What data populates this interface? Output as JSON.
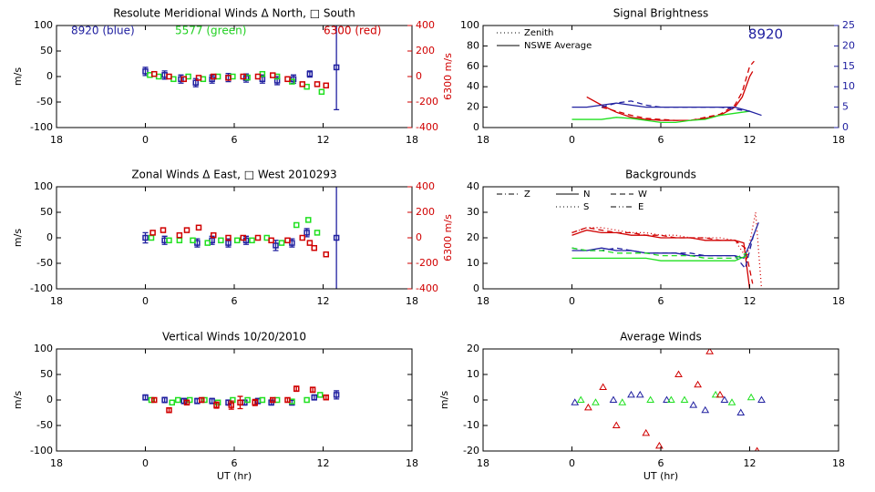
{
  "chart_data": [
    {
      "type": "scatter",
      "title": "Resolute Meridional Winds Δ North, □ South",
      "ylabel": "m/s",
      "y2label": "6300 m/s",
      "y2color": "#d00000",
      "marker": "square",
      "annotations": [
        {
          "text": "8920 (blue)",
          "color": "#2020a0"
        },
        {
          "text": "5577 (green)",
          "color": "#20d020"
        },
        {
          "text": "6300 (red)",
          "color": "#d00000"
        }
      ],
      "xlim": [
        -6,
        18
      ],
      "xticks": [
        {
          "value": -6,
          "label": "18"
        },
        0,
        6,
        12,
        18
      ],
      "ylim": [
        -100,
        100
      ],
      "yticks": [
        -100,
        -50,
        0,
        50,
        100
      ],
      "y2lim": [
        -400,
        400
      ],
      "y2ticks": [
        -400,
        -200,
        0,
        200,
        400
      ],
      "series": [
        {
          "color": "#2020a0",
          "x": [
            0,
            1.3,
            2.4,
            3.4,
            4.5,
            5.6,
            6.8,
            7.9,
            8.9,
            10.0,
            11.1,
            12.9
          ],
          "values": [
            10,
            3,
            -5,
            -12,
            -5,
            -2,
            -3,
            -5,
            -8,
            -5,
            5,
            18
          ],
          "errors": [
            8,
            8,
            8,
            8,
            8,
            8,
            8,
            8,
            8,
            8,
            6,
            83
          ]
        },
        {
          "color": "#20e020",
          "x": [
            0.3,
            0.9,
            1.9,
            2.9,
            3.9,
            4.9,
            5.9,
            6.9,
            7.9,
            8.9,
            9.9,
            10.9,
            11.9
          ],
          "values": [
            3,
            0,
            -5,
            0,
            -5,
            0,
            0,
            -2,
            5,
            0,
            -10,
            -20,
            -30
          ]
        },
        {
          "color": "#d00000",
          "axis": "y2",
          "x": [
            0.6,
            1.6,
            2.6,
            3.6,
            4.6,
            5.6,
            6.6,
            7.6,
            8.6,
            9.6,
            10.6,
            11.6,
            12.2
          ],
          "values": [
            20,
            0,
            -20,
            -10,
            0,
            -10,
            0,
            0,
            10,
            -20,
            -60,
            -60,
            -70
          ]
        }
      ]
    },
    {
      "type": "line",
      "title": "Signal Brightness",
      "y2color": "#2020a0",
      "annotations": [
        {
          "text": "8920",
          "color": "#2020a0"
        }
      ],
      "legend": [
        {
          "label": "Zenith",
          "style": "dotted"
        },
        {
          "label": "NSWE Average",
          "style": "solid"
        }
      ],
      "xlim": [
        -6,
        18
      ],
      "xticks": [
        {
          "value": -6,
          "label": "18"
        },
        0,
        6,
        12,
        18
      ],
      "ylim": [
        0,
        100
      ],
      "yticks": [
        0,
        20,
        40,
        60,
        80,
        100
      ],
      "y2lim": [
        0,
        25
      ],
      "y2ticks": [
        0,
        5,
        10,
        15,
        20,
        25
      ],
      "series": [
        {
          "color": "#d00000",
          "style": "solid",
          "x": [
            1,
            2,
            3,
            4,
            5,
            6,
            7,
            8,
            9,
            10,
            11,
            11.5,
            12,
            12.2
          ],
          "values": [
            30,
            22,
            15,
            10,
            8,
            7,
            7,
            7,
            9,
            12,
            20,
            30,
            50,
            55
          ]
        },
        {
          "color": "#d00000",
          "style": "dashed",
          "x": [
            2,
            3,
            4,
            5,
            6,
            7,
            8,
            9,
            10,
            11,
            11.5,
            12,
            12.3
          ],
          "values": [
            20,
            16,
            12,
            9,
            8,
            7,
            7,
            10,
            13,
            22,
            35,
            60,
            65
          ]
        },
        {
          "color": "#20e020",
          "style": "solid",
          "x": [
            0,
            1,
            2,
            3,
            4,
            5,
            6,
            7,
            8,
            9,
            10,
            11,
            12
          ],
          "values": [
            8,
            8,
            8,
            10,
            9,
            7,
            5,
            5,
            7,
            8,
            12,
            14,
            16
          ]
        },
        {
          "color": "#2020a0",
          "style": "solid",
          "axis": "y2",
          "x": [
            0,
            1,
            2,
            3,
            4,
            5,
            6,
            7,
            8,
            9,
            10,
            11,
            12,
            12.8
          ],
          "values": [
            5,
            5,
            5.5,
            6,
            5.5,
            5,
            5,
            5,
            5,
            5,
            5,
            5,
            4,
            3
          ]
        },
        {
          "color": "#2020a0",
          "style": "dashed",
          "axis": "y2",
          "x": [
            2,
            3,
            4,
            5,
            6,
            7,
            8,
            9,
            10,
            11,
            12
          ],
          "values": [
            5,
            6,
            6.5,
            5.5,
            5,
            5,
            5,
            5,
            5,
            4.5,
            4
          ]
        }
      ]
    },
    {
      "type": "scatter",
      "title": "Zonal Winds Δ East, □ West 2010293",
      "ylabel": "m/s",
      "y2label": "6300 m/s",
      "y2color": "#d00000",
      "marker": "square",
      "xlim": [
        -6,
        18
      ],
      "xticks": [
        {
          "value": -6,
          "label": "18"
        },
        0,
        6,
        12,
        18
      ],
      "ylim": [
        -100,
        100
      ],
      "yticks": [
        -100,
        -50,
        0,
        50,
        100
      ],
      "y2lim": [
        -400,
        400
      ],
      "y2ticks": [
        -400,
        -200,
        0,
        200,
        400
      ],
      "series": [
        {
          "color": "#2020a0",
          "x": [
            0,
            1.3,
            3.5,
            4.5,
            5.6,
            6.8,
            8.8,
            9.9,
            10.9,
            12.9
          ],
          "values": [
            0,
            -5,
            -10,
            -5,
            -10,
            -5,
            -15,
            -10,
            10,
            0
          ],
          "errors": [
            10,
            8,
            8,
            8,
            8,
            8,
            10,
            8,
            8,
            200
          ]
        },
        {
          "color": "#20e020",
          "x": [
            0.4,
            1.6,
            2.3,
            3.2,
            4.2,
            5.1,
            6.2,
            7.2,
            8.2,
            9.2,
            10.2,
            11.0,
            11.6
          ],
          "values": [
            0,
            -5,
            -5,
            -5,
            -10,
            -5,
            -5,
            -5,
            0,
            -10,
            25,
            35,
            10
          ]
        },
        {
          "color": "#d00000",
          "axis": "y2",
          "x": [
            0.5,
            1.2,
            2.3,
            2.8,
            3.6,
            4.6,
            5.6,
            6.6,
            7.6,
            8.5,
            9.6,
            10.6,
            11.1,
            11.4,
            12.2
          ],
          "values": [
            40,
            60,
            20,
            60,
            80,
            20,
            0,
            0,
            0,
            -20,
            -20,
            0,
            -40,
            -80,
            -130
          ]
        }
      ]
    },
    {
      "type": "line",
      "title": "Backgrounds",
      "legend": [
        {
          "label": "Z",
          "style": "dashdot"
        },
        {
          "label": "N",
          "style": "solid"
        },
        {
          "label": "W",
          "style": "dashed"
        },
        {
          "label": "S",
          "style": "dotted"
        },
        {
          "label": "E",
          "style": "dashdotdot"
        }
      ],
      "xlim": [
        -6,
        18
      ],
      "xticks": [
        {
          "value": -6,
          "label": "18"
        },
        0,
        6,
        12,
        18
      ],
      "ylim": [
        0,
        40
      ],
      "yticks": [
        0,
        10,
        20,
        30,
        40
      ],
      "series": [
        {
          "color": "#d00000",
          "style": "solid",
          "x": [
            0,
            1,
            2,
            3,
            4,
            5,
            6,
            7,
            8,
            9,
            10,
            11,
            11.6,
            12
          ],
          "values": [
            21,
            23,
            22,
            22,
            21,
            21,
            20,
            20,
            20,
            19,
            19,
            19,
            18,
            0
          ]
        },
        {
          "color": "#d00000",
          "style": "dotted",
          "x": [
            0,
            1,
            2,
            3,
            4,
            5,
            6,
            7,
            8,
            9,
            10,
            11,
            11.8,
            12.4,
            12.8
          ],
          "values": [
            22,
            24,
            24,
            23,
            22,
            22,
            21,
            21,
            20,
            20,
            20,
            19,
            12,
            30,
            0
          ]
        },
        {
          "color": "#d00000",
          "style": "dashed",
          "x": [
            0,
            1,
            2,
            3,
            4,
            5,
            6,
            7,
            8,
            9,
            10,
            11,
            11.7,
            12.2
          ],
          "values": [
            22,
            24,
            23,
            22,
            22,
            21,
            21,
            20,
            20,
            20,
            19,
            19,
            16,
            2
          ]
        },
        {
          "color": "#2020a0",
          "style": "solid",
          "x": [
            0,
            1,
            2,
            3,
            4,
            5,
            6,
            7,
            8,
            9,
            10,
            11,
            11.6,
            12.2,
            12.6
          ],
          "values": [
            15,
            15,
            16,
            15,
            15,
            14,
            14,
            14,
            13,
            13,
            13,
            13,
            12,
            20,
            26
          ]
        },
        {
          "color": "#2020a0",
          "style": "dashed",
          "x": [
            0,
            1,
            2,
            3,
            4,
            5,
            6,
            7,
            8,
            9,
            10,
            11,
            11.7,
            12.3
          ],
          "values": [
            16,
            15,
            15,
            16,
            15,
            14,
            14,
            14,
            14,
            13,
            13,
            13,
            8,
            22
          ]
        },
        {
          "color": "#20e020",
          "style": "solid",
          "x": [
            0,
            1,
            2,
            3,
            4,
            5,
            6,
            7,
            8,
            9,
            10,
            11,
            11.8
          ],
          "values": [
            12,
            12,
            12,
            12,
            12,
            12,
            11,
            11,
            11,
            11,
            11,
            11,
            13
          ]
        },
        {
          "color": "#20e020",
          "style": "dashed",
          "x": [
            0,
            1,
            2,
            3,
            4,
            5,
            6,
            7,
            8,
            9,
            10,
            11,
            11.8
          ],
          "values": [
            16,
            15,
            15,
            14,
            14,
            14,
            13,
            13,
            13,
            12,
            12,
            12,
            14
          ]
        }
      ]
    },
    {
      "type": "scatter",
      "title": "Vertical Winds 10/20/2010",
      "ylabel": "m/s",
      "xlabel": "UT (hr)",
      "marker": "square",
      "xlim": [
        -6,
        18
      ],
      "xticks": [
        {
          "value": -6,
          "label": "18"
        },
        0,
        6,
        12,
        18
      ],
      "ylim": [
        -100,
        100
      ],
      "yticks": [
        -100,
        -50,
        0,
        50,
        100
      ],
      "series": [
        {
          "color": "#2020a0",
          "x": [
            0,
            1.3,
            2.6,
            3.5,
            4.5,
            5.6,
            6.7,
            7.6,
            8.5,
            9.9,
            11.4,
            12.9
          ],
          "values": [
            5,
            0,
            -2,
            -2,
            -2,
            -5,
            -5,
            -2,
            -5,
            -5,
            5,
            10
          ],
          "errors": [
            5,
            5,
            5,
            5,
            5,
            5,
            5,
            5,
            5,
            5,
            5,
            8
          ]
        },
        {
          "color": "#20e020",
          "x": [
            0.4,
            1.8,
            2.2,
            3.0,
            4.0,
            4.9,
            5.9,
            6.9,
            7.9,
            8.9,
            9.9,
            10.9,
            11.8
          ],
          "values": [
            0,
            -5,
            0,
            0,
            0,
            -5,
            0,
            0,
            0,
            0,
            -3,
            0,
            10
          ]
        },
        {
          "color": "#d00000",
          "x": [
            0.6,
            1.6,
            2.8,
            3.8,
            4.8,
            5.8,
            6.4,
            7.4,
            8.6,
            9.6,
            10.2,
            11.3,
            12.2
          ],
          "values": [
            0,
            -20,
            -5,
            0,
            -10,
            -10,
            -5,
            -5,
            0,
            0,
            22,
            20,
            5
          ],
          "errors": [
            4,
            4,
            4,
            4,
            6,
            8,
            12,
            6,
            4,
            4,
            5,
            5,
            4
          ]
        }
      ]
    },
    {
      "type": "scatter",
      "title": "Average Winds",
      "ylabel": "m/s",
      "xlabel": "UT (hr)",
      "marker": "triangle",
      "xlim": [
        -6,
        18
      ],
      "xticks": [
        {
          "value": -6,
          "label": "18"
        },
        0,
        6,
        12,
        18
      ],
      "ylim": [
        -20,
        20
      ],
      "yticks": [
        -20,
        -10,
        0,
        10,
        20
      ],
      "series": [
        {
          "color": "#2020a0",
          "x": [
            0.2,
            2.8,
            4.0,
            4.6,
            6.4,
            8.2,
            9.0,
            10.3,
            11.4,
            12.8
          ],
          "values": [
            -1,
            0,
            2,
            2,
            0,
            -2,
            -4,
            0,
            -5,
            0
          ]
        },
        {
          "color": "#20e020",
          "x": [
            0.6,
            1.6,
            3.4,
            5.3,
            6.7,
            7.6,
            9.7,
            10.8,
            12.1
          ],
          "values": [
            0,
            -1,
            -1,
            0,
            0,
            0,
            2,
            -1,
            1
          ]
        },
        {
          "color": "#d00000",
          "x": [
            1.1,
            2.1,
            3.0,
            5.0,
            5.9,
            7.2,
            8.5,
            9.3,
            10.0,
            12.5
          ],
          "values": [
            -3,
            5,
            -10,
            -13,
            -18,
            10,
            6,
            19,
            2,
            -20
          ]
        }
      ]
    }
  ]
}
